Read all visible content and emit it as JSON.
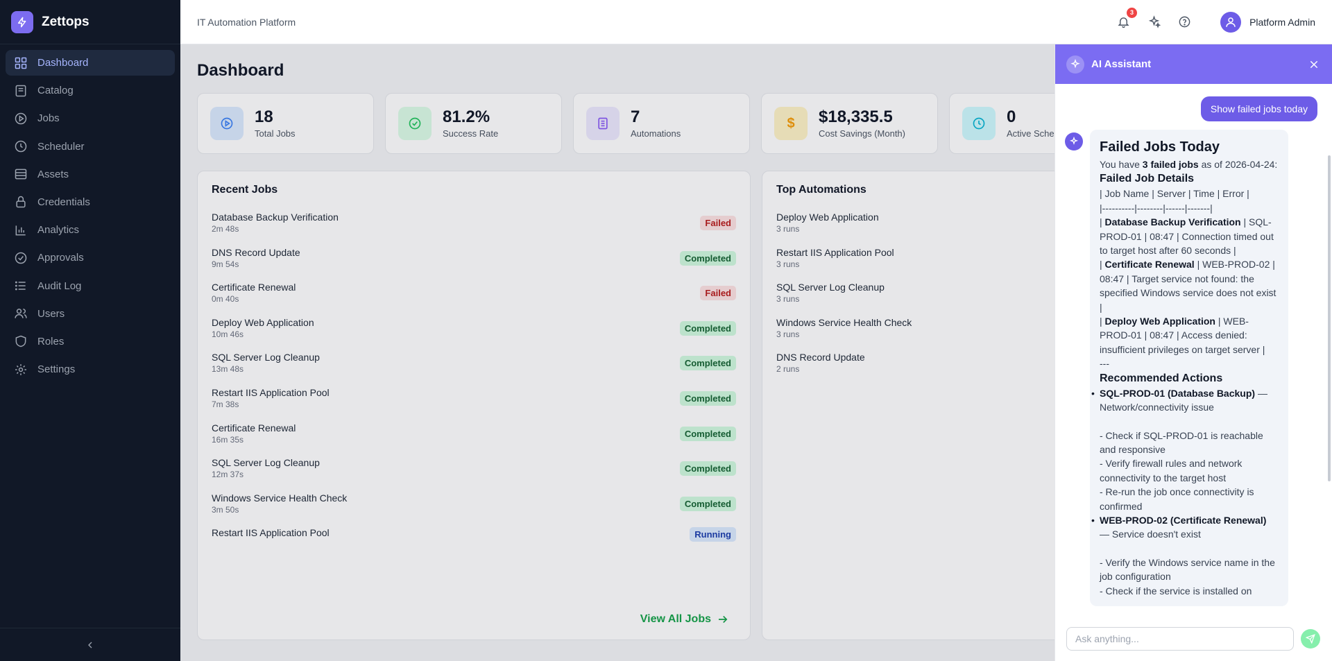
{
  "app": {
    "name": "Zettops"
  },
  "sidebar": {
    "items": [
      {
        "label": "Dashboard",
        "icon": "grid-icon",
        "active": true
      },
      {
        "label": "Catalog",
        "icon": "book-icon"
      },
      {
        "label": "Jobs",
        "icon": "play-circle-icon"
      },
      {
        "label": "Scheduler",
        "icon": "clock-icon"
      },
      {
        "label": "Assets",
        "icon": "server-icon"
      },
      {
        "label": "Credentials",
        "icon": "lock-icon"
      },
      {
        "label": "Analytics",
        "icon": "bar-chart-icon"
      },
      {
        "label": "Approvals",
        "icon": "check-circle-icon"
      },
      {
        "label": "Audit Log",
        "icon": "list-icon"
      },
      {
        "label": "Users",
        "icon": "users-icon"
      },
      {
        "label": "Roles",
        "icon": "shield-icon"
      },
      {
        "label": "Settings",
        "icon": "gear-icon"
      }
    ]
  },
  "topbar": {
    "title": "IT Automation Platform",
    "notification_count": "3",
    "user_name": "Platform Admin"
  },
  "page": {
    "title": "Dashboard"
  },
  "stats": [
    {
      "value": "18",
      "label": "Total Jobs",
      "icon": "play-circle-icon",
      "color": "#3b82f6"
    },
    {
      "value": "81.2%",
      "label": "Success Rate",
      "icon": "check-circle-icon",
      "color": "#22c55e"
    },
    {
      "value": "7",
      "label": "Automations",
      "icon": "document-icon",
      "color": "#8b5cf6"
    },
    {
      "value": "$18,335.5",
      "label": "Cost Savings (Month)",
      "icon": "dollar-icon",
      "color": "#f59e0b"
    },
    {
      "value": "0",
      "label": "Active Sche",
      "icon": "clock-icon",
      "color": "#06b6d4"
    }
  ],
  "recent_jobs": {
    "title": "Recent Jobs",
    "rows": [
      {
        "name": "Database Backup Verification",
        "duration": "2m 48s",
        "status": "Failed"
      },
      {
        "name": "DNS Record Update",
        "duration": "9m 54s",
        "status": "Completed"
      },
      {
        "name": "Certificate Renewal",
        "duration": "0m 40s",
        "status": "Failed"
      },
      {
        "name": "Deploy Web Application",
        "duration": "10m 46s",
        "status": "Completed"
      },
      {
        "name": "SQL Server Log Cleanup",
        "duration": "13m 48s",
        "status": "Completed"
      },
      {
        "name": "Restart IIS Application Pool",
        "duration": "7m 38s",
        "status": "Completed"
      },
      {
        "name": "Certificate Renewal",
        "duration": "16m 35s",
        "status": "Completed"
      },
      {
        "name": "SQL Server Log Cleanup",
        "duration": "12m 37s",
        "status": "Completed"
      },
      {
        "name": "Windows Service Health Check",
        "duration": "3m 50s",
        "status": "Completed"
      },
      {
        "name": "Restart IIS Application Pool",
        "duration": "",
        "status": "Running"
      }
    ],
    "view_all": "View All Jobs"
  },
  "top_automations": {
    "title": "Top Automations",
    "rows": [
      {
        "name": "Deploy Web Application",
        "runs": "3 runs"
      },
      {
        "name": "Restart IIS Application Pool",
        "runs": "3 runs"
      },
      {
        "name": "SQL Server Log Cleanup",
        "runs": "3 runs"
      },
      {
        "name": "Windows Service Health Check",
        "runs": "3 runs"
      },
      {
        "name": "DNS Record Update",
        "runs": "2 runs"
      }
    ]
  },
  "ai": {
    "title": "AI Assistant",
    "user_message": "Show failed jobs today",
    "response": {
      "heading": "Failed Jobs Today",
      "intro_pre": "You have ",
      "intro_bold": "3 failed jobs",
      "intro_post": " as of 2026-04-24:",
      "details_heading": "Failed Job Details",
      "table_header": "| Job Name | Server | Time | Error |",
      "table_sep": "|----------|--------|------|-------|",
      "rows": [
        {
          "name": "Database Backup Verification",
          "rest": " | SQL-PROD-01 | 08:47 | Connection timed out to target host after 60 seconds |"
        },
        {
          "name": "Certificate Renewal",
          "rest": " | WEB-PROD-02 | 08:47 | Target service not found: the specified Windows service does not exist |"
        },
        {
          "name": "Deploy Web Application",
          "rest": " | WEB-PROD-01 | 08:47 | Access denied: insufficient privileges on target server |"
        }
      ],
      "divider": "---",
      "actions_heading": "Recommended Actions",
      "actions": [
        {
          "title": "SQL-PROD-01 (Database Backup)",
          "summary": " — Network/connectivity issue",
          "steps": [
            "- Check if SQL-PROD-01 is reachable and responsive",
            "- Verify firewall rules and network connectivity to the target host",
            "- Re-run the job once connectivity is confirmed"
          ]
        },
        {
          "title": "WEB-PROD-02 (Certificate Renewal)",
          "summary": " — Service doesn't exist",
          "steps": [
            "- Verify the Windows service name in the job configuration",
            "- Check if the service is installed on"
          ]
        }
      ]
    },
    "input_placeholder": "Ask anything..."
  }
}
